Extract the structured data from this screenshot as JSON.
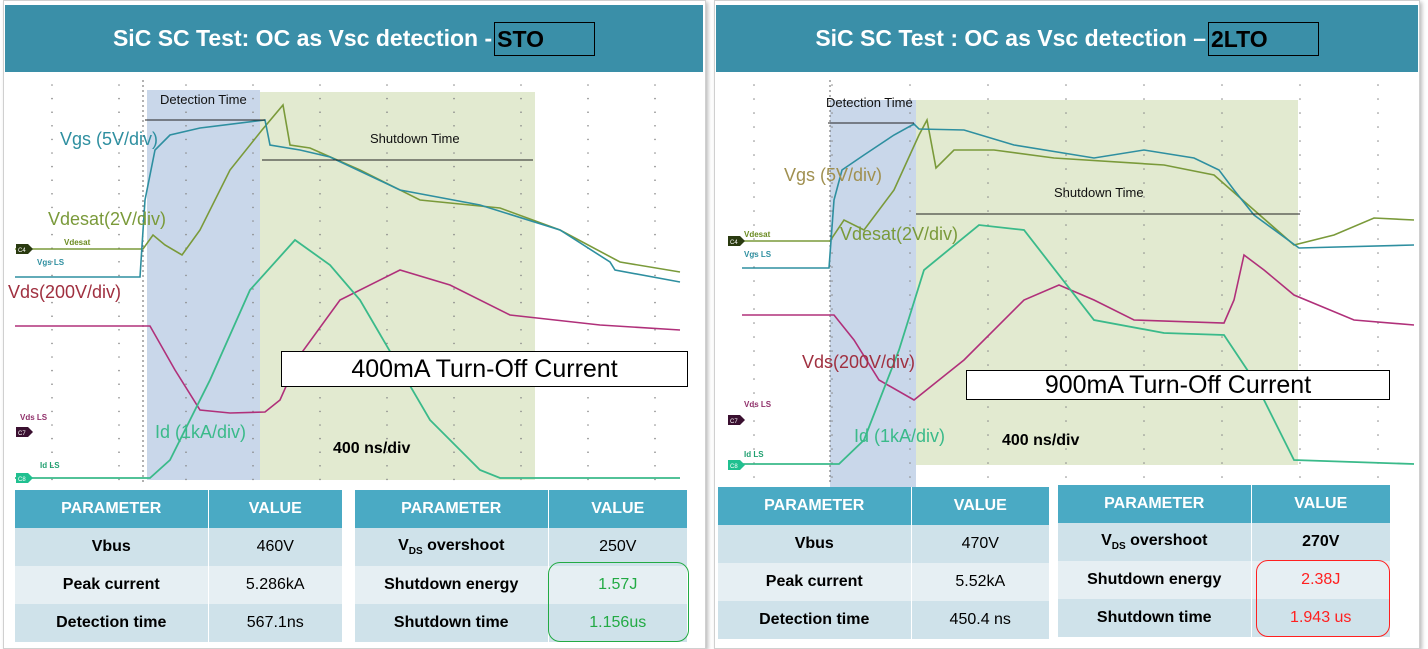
{
  "left": {
    "title": "SiC SC Test: OC as Vsc detection - ",
    "tag": "STO",
    "labels": {
      "detection": "Detection Time",
      "shutdown": "Shutdown Time",
      "vgs": "Vgs (5V/div)",
      "vdesat": "Vdesat(2V/div)",
      "vds": "Vds(200V/div)",
      "id": "Id (1kA/div)",
      "timebase": "400 ns/div",
      "ch_vdesat": "Vdesat",
      "ch_vgs": "Vgs LS",
      "ch_vds": "Vds LS",
      "ch_id": "Id LS",
      "c4": "C4",
      "c7": "C7",
      "c8": "C8"
    },
    "current": "400mA Turn-Off Current",
    "table1": {
      "headers": [
        "PARAMETER",
        "VALUE"
      ],
      "rows": [
        [
          "Vbus",
          "460V"
        ],
        [
          "Peak current",
          "5.286kA"
        ],
        [
          "Detection time",
          "567.1ns"
        ]
      ]
    },
    "table2": {
      "headers": [
        "PARAMETER",
        "VALUE"
      ],
      "vds_main": "V",
      "vds_sub": "DS",
      "vds_rest": " overshoot",
      "rows": [
        [
          "",
          "250V"
        ],
        [
          "Shutdown energy",
          "1.57J"
        ],
        [
          "Shutdown time",
          "1.156us"
        ]
      ]
    },
    "highlight_color": "#22aa44"
  },
  "right": {
    "title": "SiC SC Test : OC as Vsc detection – ",
    "tag": "2LTO",
    "labels": {
      "detection": "Detection Time",
      "shutdown": "Shutdown Time",
      "vgs": "Vgs (5V/div)",
      "vdesat": "Vdesat(2V/div)",
      "vds": "Vds(200V/div)",
      "id": "Id (1kA/div)",
      "timebase": "400 ns/div",
      "ch_vdesat": "Vdesat",
      "ch_vgs": "Vgs LS",
      "ch_vds": "Vds LS",
      "ch_id": "Id LS",
      "c4": "C4",
      "c7": "C7",
      "c8": "C8"
    },
    "current": "900mA Turn-Off Current",
    "table1": {
      "headers": [
        "PARAMETER",
        "VALUE"
      ],
      "rows": [
        [
          "Vbus",
          "470V"
        ],
        [
          "Peak current",
          "5.52kA"
        ],
        [
          "Detection time",
          "450.4 ns"
        ]
      ]
    },
    "table2": {
      "headers": [
        "PARAMETER",
        "VALUE"
      ],
      "vds_main": "V",
      "vds_sub": "DS",
      "vds_rest": " overshoot",
      "rows": [
        [
          "",
          "270V"
        ],
        [
          "Shutdown energy",
          "2.38J"
        ],
        [
          "Shutdown time",
          "1.943 us"
        ]
      ]
    },
    "highlight_color": "#ff2020"
  },
  "colors": {
    "header": "#3a8fa8",
    "vgs": "#2e8fa0",
    "vdesat": "#7a9a3a",
    "vds": "#b0307a",
    "id": "#3aba8a",
    "detection_band": "#c9d7ea",
    "shutdown_band": "#e2ead0"
  }
}
